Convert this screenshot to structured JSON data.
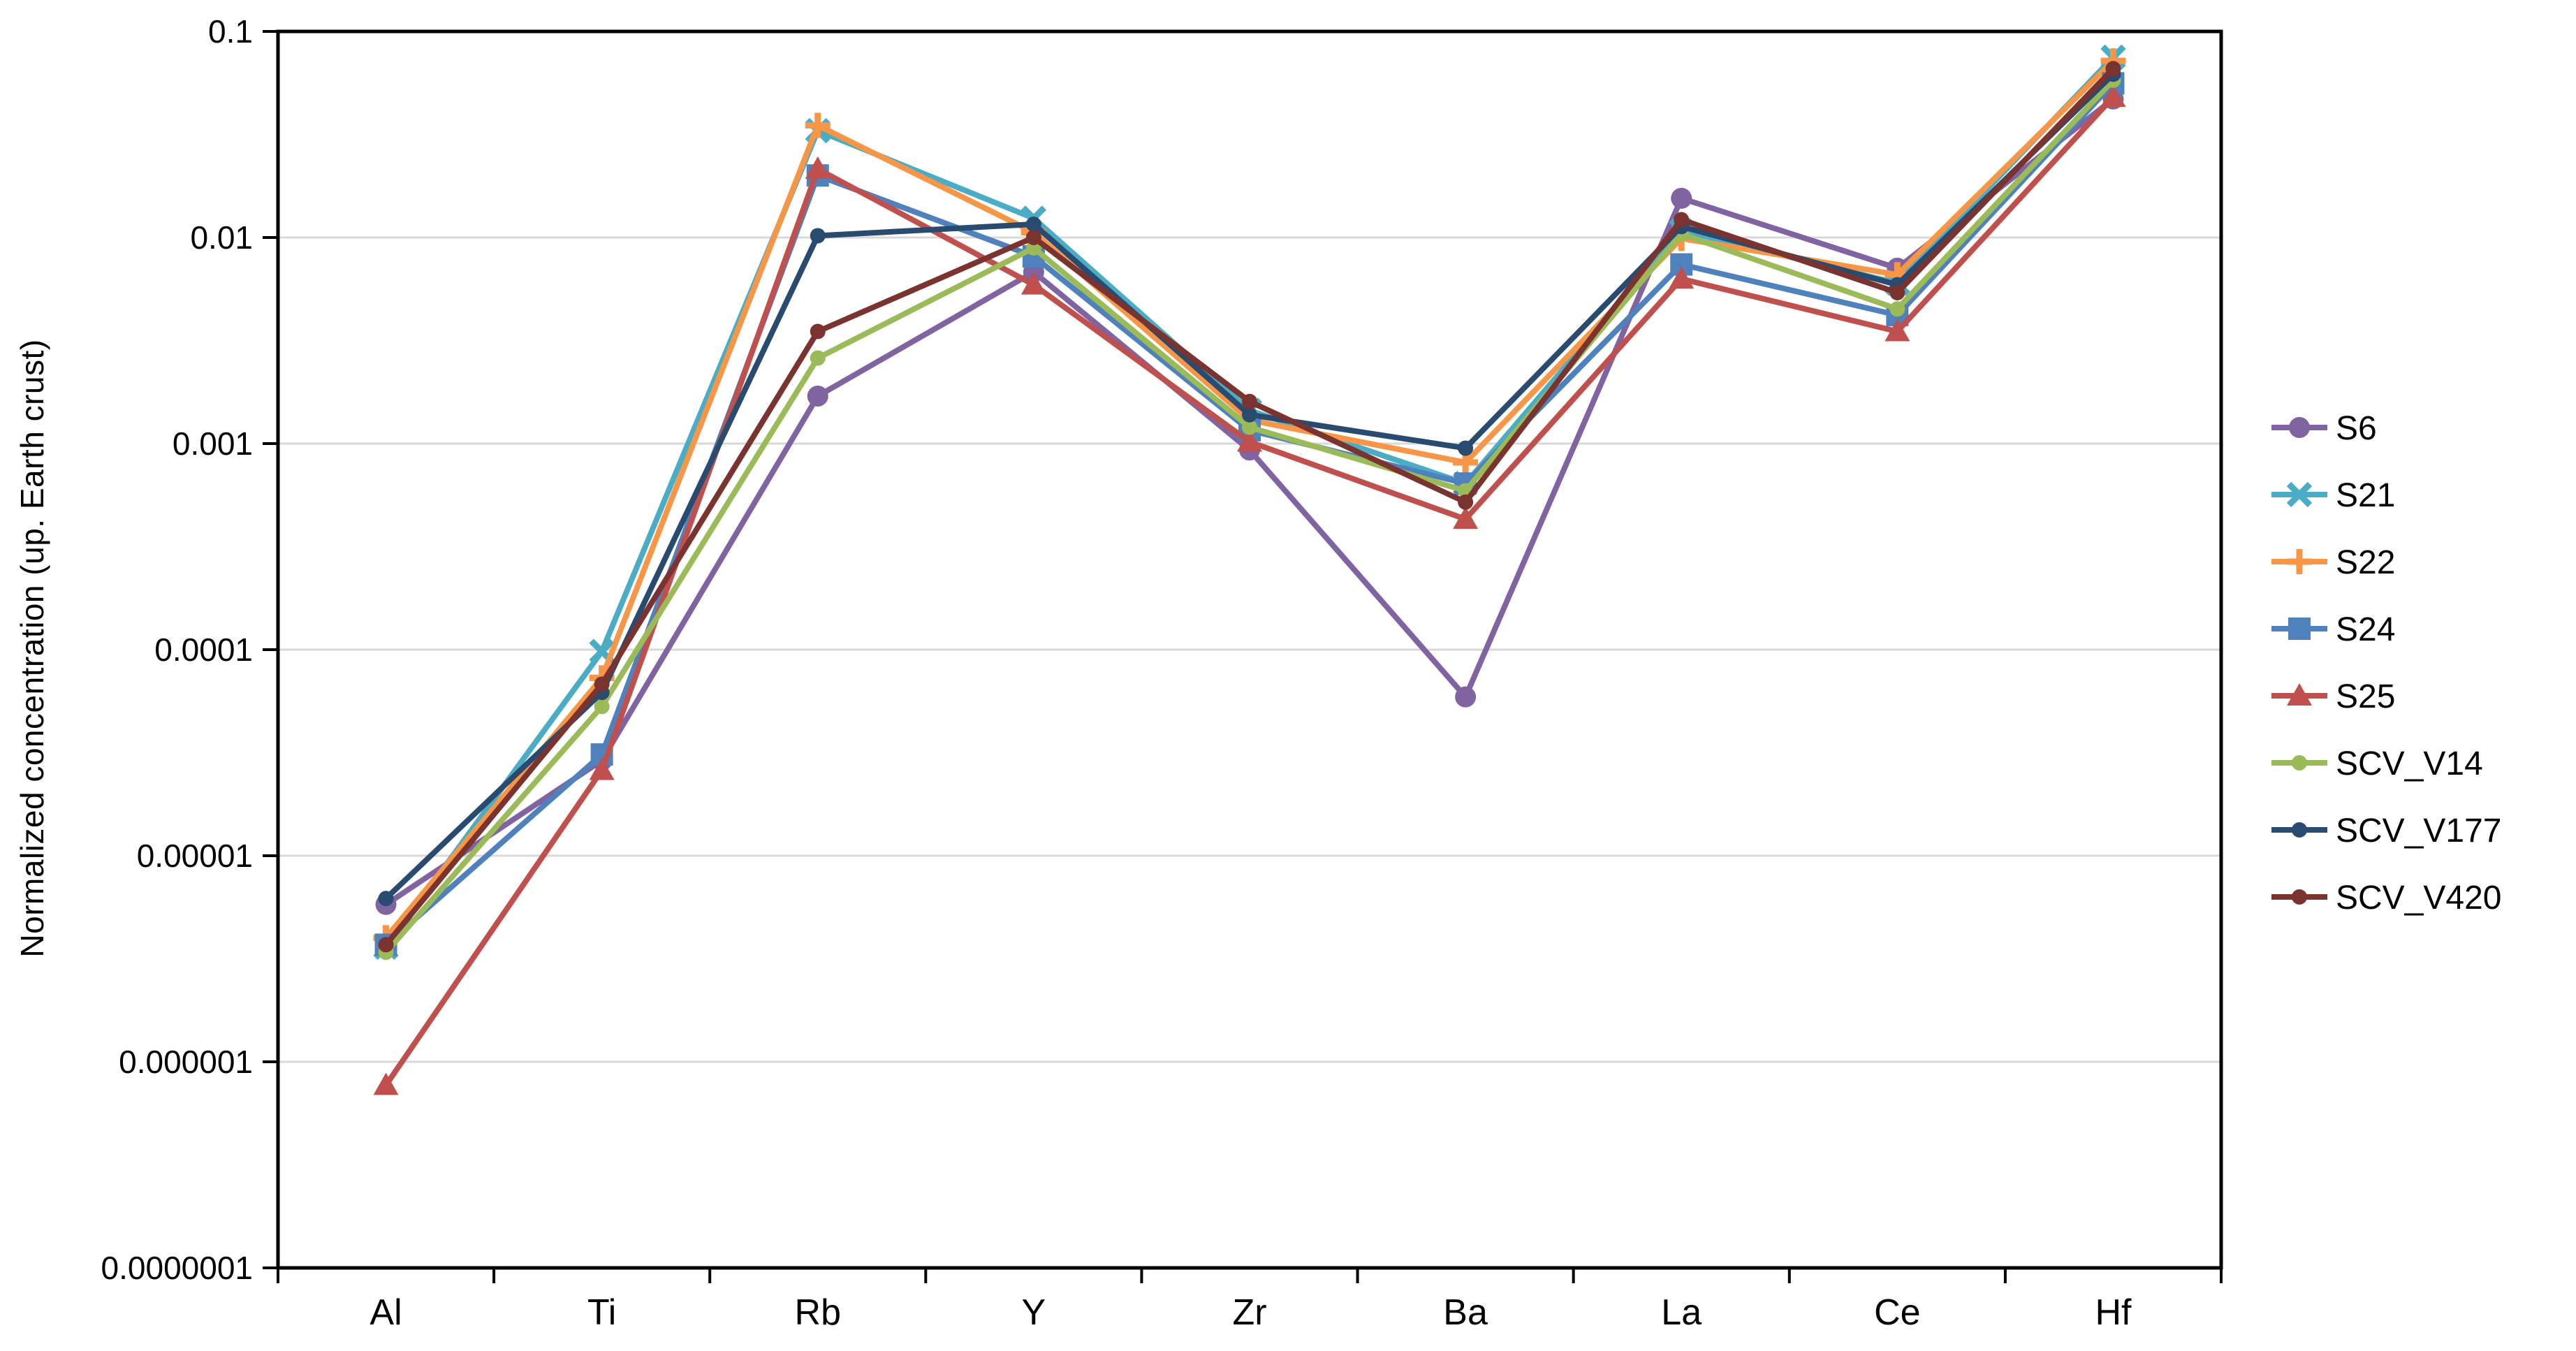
{
  "chart_data": {
    "type": "line",
    "title": "",
    "xlabel": "",
    "ylabel": "Normalized concentration (up. Earth crust)",
    "categories": [
      "Al",
      "Ti",
      "Rb",
      "Y",
      "Zr",
      "Ba",
      "La",
      "Ce",
      "Hf"
    ],
    "y_axis": {
      "scale": "log",
      "min": 1e-07,
      "max": 0.1,
      "tick_labels": [
        "0.1",
        "0.01",
        "0.001",
        "0.0001",
        "0.00001",
        "0.000001",
        "0.0000001"
      ]
    },
    "grid": "horizontal",
    "legend_position": "right",
    "series": [
      {
        "name": "S6",
        "color": "#8064A2",
        "marker": "circle-large",
        "values": [
          5.8e-06,
          2.9e-05,
          0.0017,
          0.0068,
          0.00093,
          5.9e-05,
          0.0155,
          0.0071,
          0.047
        ]
      },
      {
        "name": "S21",
        "color": "#4BACC6",
        "marker": "x",
        "values": [
          3.6e-06,
          9.8e-05,
          0.033,
          0.0124,
          0.00145,
          0.00064,
          0.0108,
          0.006,
          0.075
        ]
      },
      {
        "name": "S22",
        "color": "#F79646",
        "marker": "plus",
        "values": [
          4e-06,
          7.3e-05,
          0.035,
          0.0106,
          0.0013,
          0.00081,
          0.0099,
          0.0066,
          0.072
        ]
      },
      {
        "name": "S24",
        "color": "#4F81BD",
        "marker": "square",
        "values": [
          3.7e-06,
          3.1e-05,
          0.02,
          0.0081,
          0.00116,
          0.00064,
          0.0074,
          0.0042,
          0.056
        ]
      },
      {
        "name": "S25",
        "color": "#C0504D",
        "marker": "triangle",
        "values": [
          7.7e-07,
          2.6e-05,
          0.0215,
          0.0059,
          0.00102,
          0.00043,
          0.0063,
          0.0035,
          0.048
        ]
      },
      {
        "name": "SCV_V14",
        "color": "#9BBB59",
        "marker": "circle-small",
        "values": [
          3.4e-06,
          5.3e-05,
          0.0026,
          0.0089,
          0.0012,
          0.00059,
          0.0104,
          0.0045,
          0.058
        ]
      },
      {
        "name": "SCV_V177",
        "color": "#2A4B70",
        "marker": "circle-small",
        "values": [
          6.2e-06,
          6.2e-05,
          0.0102,
          0.0116,
          0.00138,
          0.00095,
          0.0113,
          0.0059,
          0.062
        ]
      },
      {
        "name": "SCV_V420",
        "color": "#7B3330",
        "marker": "circle-small",
        "values": [
          3.7e-06,
          6.8e-05,
          0.0035,
          0.01,
          0.0016,
          0.00052,
          0.0122,
          0.0054,
          0.066
        ]
      }
    ]
  },
  "colors": {
    "background": "#FFFFFF",
    "grid": "#D9D9D9",
    "axis": "#000000",
    "text": "#000000"
  }
}
